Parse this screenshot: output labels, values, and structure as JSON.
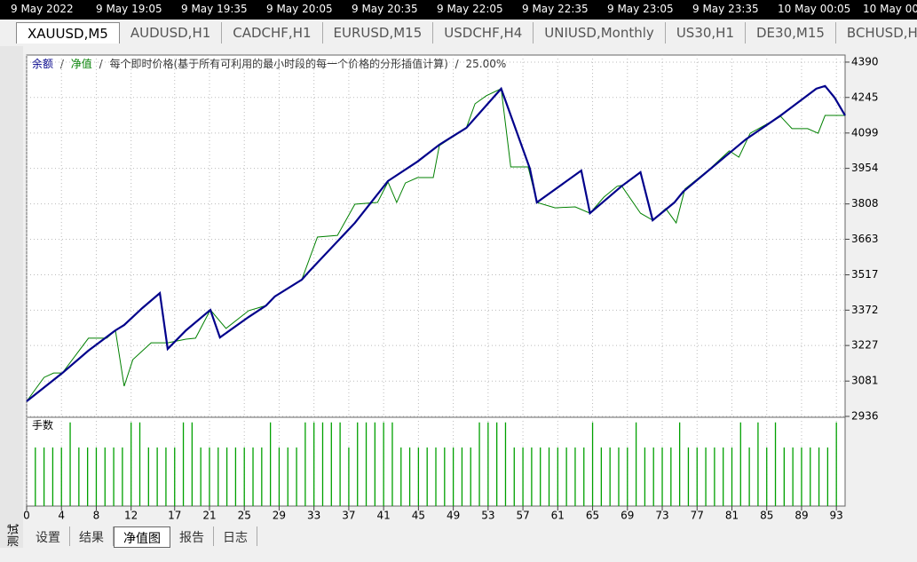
{
  "time_bar": [
    "9 May 2022",
    "9 May 19:05",
    "9 May 19:35",
    "9 May 20:05",
    "9 May 20:35",
    "9 May 22:05",
    "9 May 22:35",
    "9 May 23:05",
    "9 May 23:35",
    "10 May 00:05",
    "10 May 00"
  ],
  "symbol_tabs": {
    "items": [
      "XAUUSD,M5",
      "AUDUSD,H1",
      "CADCHF,H1",
      "EURUSD,M15",
      "USDCHF,H4",
      "UNIUSD,Monthly",
      "US30,H1",
      "DE30,M15",
      "BCHUSD,H"
    ],
    "active": 0
  },
  "bottom_tabs": {
    "items": [
      "设置",
      "结果",
      "净值图",
      "报告",
      "日志"
    ],
    "active": 2
  },
  "side_panel": {
    "label": "测试"
  },
  "chart_data": [
    {
      "type": "line",
      "separator": "/",
      "description": "每个即时价格(基于所有可利用的最小时段的每一个价格的分形插值计算)",
      "ratio": "25.00%",
      "xlim": [
        0,
        94
      ],
      "ylim": [
        2936,
        4419
      ],
      "yticks": [
        4390,
        4245,
        4099,
        3954,
        3808,
        3663,
        3517,
        3372,
        3227,
        3081,
        2936
      ],
      "grid": true,
      "series": [
        {
          "name": "余额",
          "color": "#00008b",
          "x": [
            0,
            4.1,
            7.1,
            10.2,
            11.2,
            13.3,
            15.3,
            16.2,
            18.3,
            21.1,
            22.2,
            25.5,
            27.5,
            28.5,
            31.6,
            32.6,
            37.7,
            41.5,
            44.9,
            47.4,
            50.5,
            54.5,
            57.8,
            58.6,
            63.7,
            64.7,
            68.3,
            70.5,
            71.9,
            74.4,
            75.4,
            82.6,
            86.6,
            90.7,
            91.7,
            92.8,
            94
          ],
          "values": [
            2998,
            3114,
            3206,
            3289,
            3311,
            3381,
            3442,
            3213,
            3289,
            3373,
            3260,
            3344,
            3391,
            3428,
            3497,
            3537,
            3730,
            3902,
            3982,
            4051,
            4120,
            4281,
            3953,
            3814,
            3945,
            3770,
            3880,
            3938,
            3741,
            3814,
            3858,
            4073,
            4171,
            4281,
            4292,
            4244,
            4171
          ]
        },
        {
          "name": "净值",
          "color": "#008000",
          "x": [
            0,
            2.0,
            3.1,
            4.1,
            7.1,
            9.2,
            10.2,
            11.2,
            12.2,
            14.3,
            16.2,
            18.3,
            19.4,
            21.1,
            22.9,
            25.5,
            27.5,
            28.5,
            31.6,
            33.4,
            35.7,
            37.7,
            40.3,
            41.5,
            42.5,
            43.5,
            44.9,
            46.7,
            47.4,
            50.5,
            51.5,
            52.8,
            54.5,
            55.6,
            57.6,
            58.6,
            60.7,
            63.0,
            64.7,
            66.3,
            67.8,
            68.3,
            70.5,
            71.9,
            73.4,
            74.6,
            75.6,
            78.5,
            80.7,
            81.8,
            83.1,
            86.6,
            87.9,
            89.7,
            90.9,
            91.7,
            94
          ],
          "values": [
            2998,
            3096,
            3114,
            3114,
            3257,
            3257,
            3289,
            3060,
            3169,
            3238,
            3238,
            3253,
            3257,
            3373,
            3297,
            3370,
            3391,
            3428,
            3497,
            3672,
            3679,
            3807,
            3814,
            3898,
            3814,
            3894,
            3916,
            3916,
            4047,
            4120,
            4219,
            4252,
            4281,
            3960,
            3960,
            3814,
            3792,
            3796,
            3770,
            3836,
            3880,
            3884,
            3770,
            3741,
            3789,
            3730,
            3869,
            3953,
            4026,
            4000,
            4098,
            4167,
            4117,
            4117,
            4098,
            4171,
            4171
          ]
        }
      ]
    },
    {
      "type": "bar",
      "title": "手数",
      "color": "#00a000",
      "xlim": [
        0,
        94
      ],
      "ylim": [
        0,
        1.04
      ],
      "xticks": [
        0,
        4,
        8,
        12,
        17,
        21,
        25,
        29,
        33,
        37,
        41,
        45,
        49,
        53,
        57,
        61,
        65,
        69,
        73,
        77,
        81,
        85,
        89,
        93
      ],
      "x": [
        1,
        2,
        3,
        4,
        5,
        6,
        7,
        8,
        9,
        10,
        11,
        12,
        13,
        14,
        15,
        16,
        17,
        18,
        19,
        20,
        21,
        22,
        23,
        24,
        25,
        26,
        27,
        28,
        29,
        30,
        31,
        32,
        33,
        34,
        35,
        36,
        37,
        38,
        39,
        40,
        41,
        42,
        43,
        44,
        45,
        46,
        47,
        48,
        49,
        50,
        51,
        52,
        53,
        54,
        55,
        56,
        57,
        58,
        59,
        60,
        61,
        62,
        63,
        64,
        65,
        66,
        67,
        68,
        69,
        70,
        71,
        72,
        73,
        74,
        75,
        76,
        77,
        78,
        79,
        80,
        81,
        82,
        83,
        84,
        85,
        86,
        87,
        88,
        89,
        90,
        91,
        92,
        93
      ],
      "values": [
        0.7,
        0.7,
        0.7,
        0.7,
        1,
        0.7,
        0.7,
        0.7,
        0.7,
        0.7,
        0.7,
        1,
        1,
        0.7,
        0.7,
        0.7,
        0.7,
        1,
        1,
        0.7,
        0.7,
        0.7,
        0.7,
        0.7,
        0.7,
        0.7,
        0.7,
        1,
        0.7,
        0.7,
        0.7,
        1,
        1,
        1,
        1,
        1,
        0.7,
        1,
        1,
        1,
        1,
        1,
        0.7,
        0.7,
        0.7,
        0.7,
        0.7,
        0.7,
        0.7,
        0.7,
        0.7,
        1,
        1,
        1,
        1,
        0.7,
        0.7,
        0.7,
        0.7,
        0.7,
        0.7,
        0.7,
        0.7,
        0.7,
        1,
        0.7,
        0.7,
        0.7,
        0.7,
        1,
        0.7,
        0.7,
        0.7,
        0.7,
        1,
        0.7,
        0.7,
        0.7,
        0.7,
        0.7,
        0.7,
        1,
        0.7,
        1,
        0.7,
        1,
        0.7,
        0.7,
        0.7,
        0.7,
        0.7,
        0.7,
        1
      ]
    }
  ]
}
